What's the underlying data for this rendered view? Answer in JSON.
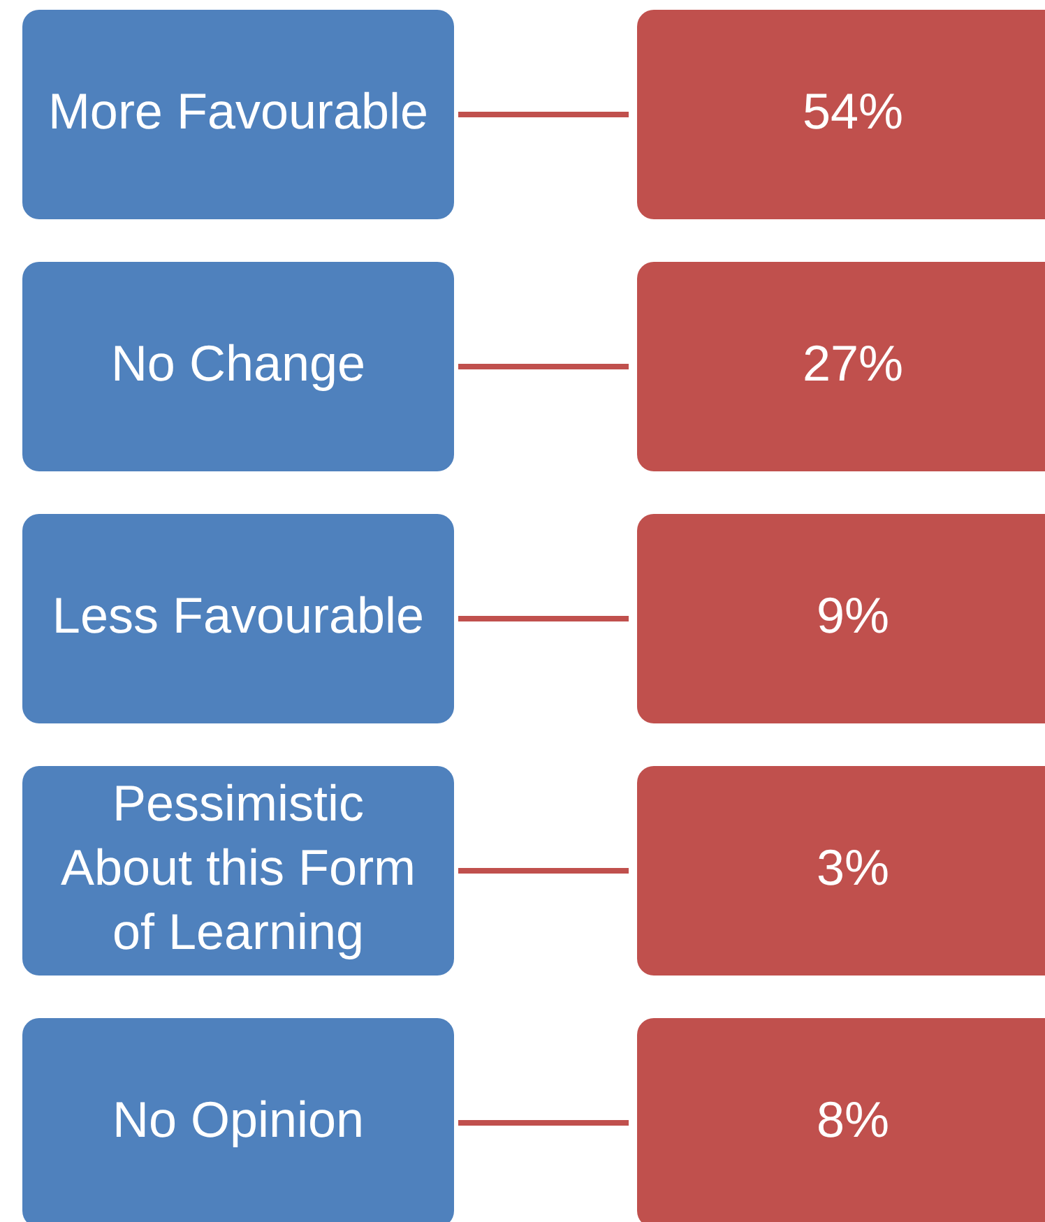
{
  "chart_data": {
    "type": "other",
    "categories": [
      "More Favourable",
      "No Change",
      "Less Favourable",
      "Pessimistic About this Form of Learning",
      "No Opinion"
    ],
    "values": [
      54,
      27,
      9,
      3,
      8
    ],
    "value_labels": [
      "54%",
      "27%",
      "9%",
      "3%",
      "8%"
    ],
    "color": "#c0504d"
  }
}
